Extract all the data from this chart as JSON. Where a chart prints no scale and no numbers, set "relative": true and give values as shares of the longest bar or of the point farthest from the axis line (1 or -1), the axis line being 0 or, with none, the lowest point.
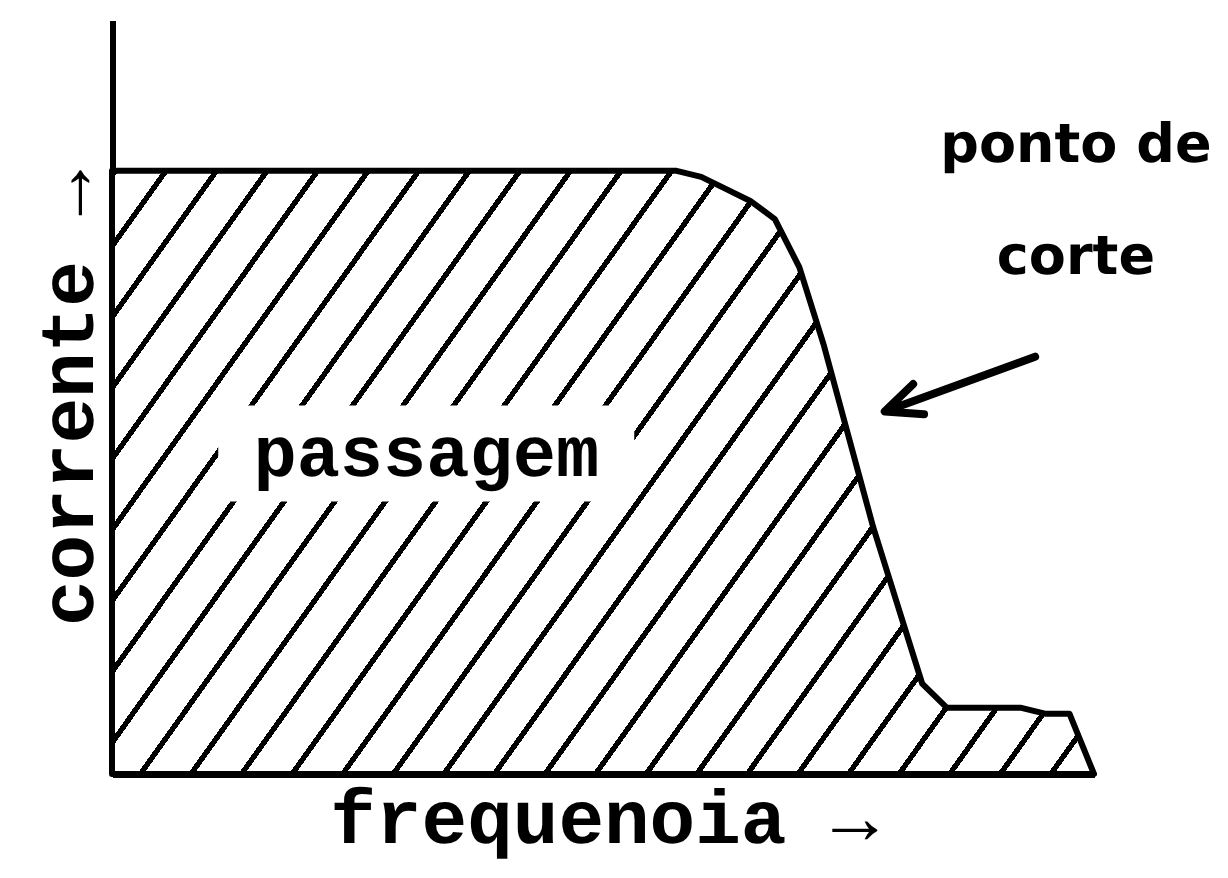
{
  "chart_data": {
    "type": "area",
    "relative": true,
    "xlabel": "frequenoia →",
    "ylabel": "corrente →",
    "categories": [
      null,
      null,
      null,
      null,
      null,
      null,
      null,
      null,
      null,
      null,
      null,
      null,
      null,
      null,
      null,
      null,
      null,
      null,
      null,
      null,
      null,
      null,
      null,
      null,
      null,
      null,
      null,
      null,
      null,
      null,
      null,
      null,
      null,
      null,
      null,
      null,
      null,
      null,
      null,
      null,
      null
    ],
    "series": [
      {
        "color": "#000000",
        "values": [
          1,
          1,
          1,
          1,
          1,
          1,
          1,
          1,
          1,
          1,
          1,
          1,
          1,
          1,
          1,
          1,
          1,
          1,
          1,
          1,
          1,
          1,
          1,
          1,
          0.99,
          0.97,
          0.95,
          0.92,
          0.84,
          0.71,
          0.56,
          0.41,
          0.28,
          0.15,
          0.11,
          0.11,
          0.11,
          0.11,
          0.1,
          0.1,
          0
        ]
      }
    ],
    "annotations": [
      "passagem",
      "ponto de corte"
    ]
  }
}
